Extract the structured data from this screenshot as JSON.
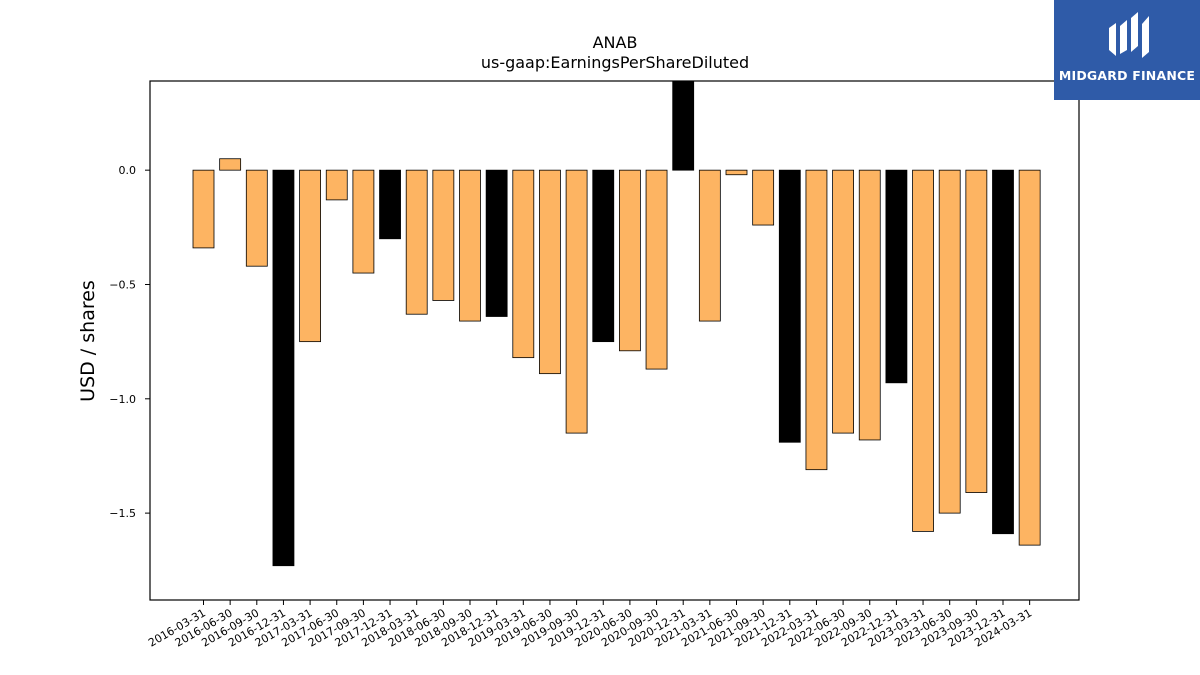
{
  "logo": {
    "text": "MIDGARD FINANCE",
    "icon": "midgard-finance-logo-icon",
    "background": "#2f5ba8"
  },
  "chart_data": {
    "type": "bar",
    "title": "ANAB",
    "subtitle": "us-gaap:EarningsPerShareDiluted",
    "xlabel": "",
    "ylabel": "USD / shares",
    "ylim": [
      -1.88,
      0.39
    ],
    "yticks": [
      0.0,
      -0.5,
      -1.0,
      -1.5
    ],
    "ytick_labels": [
      "0.0",
      "−0.5",
      "−1.0",
      "−1.5"
    ],
    "grid": false,
    "legend": "none",
    "colors": {
      "quarter": "#fdb462",
      "year_end": "#000000",
      "edge": "#000000"
    },
    "categories": [
      "2016-03-31",
      "2016-06-30",
      "2016-09-30",
      "2016-12-31",
      "2017-03-31",
      "2017-06-30",
      "2017-09-30",
      "2017-12-31",
      "2018-03-31",
      "2018-06-30",
      "2018-09-30",
      "2018-12-31",
      "2019-03-31",
      "2019-06-30",
      "2019-09-30",
      "2019-12-31",
      "2020-06-30",
      "2020-09-30",
      "2020-12-31",
      "2021-03-31",
      "2021-06-30",
      "2021-09-30",
      "2021-12-31",
      "2022-03-31",
      "2022-06-30",
      "2022-09-30",
      "2022-12-31",
      "2023-03-31",
      "2023-06-30",
      "2023-09-30",
      "2023-12-31",
      "2024-03-31"
    ],
    "values": [
      -0.34,
      0.05,
      -0.42,
      -1.73,
      -0.75,
      -0.13,
      -0.45,
      -0.3,
      -0.63,
      -0.57,
      -0.66,
      -0.64,
      -0.82,
      -0.89,
      -1.15,
      -0.75,
      -0.79,
      -0.87,
      0.39,
      -0.66,
      -0.02,
      -0.24,
      -1.19,
      -1.31,
      -1.15,
      -1.18,
      -0.93,
      -1.58,
      -1.5,
      -1.41,
      -1.59,
      -1.64
    ],
    "year_end": [
      false,
      false,
      false,
      true,
      false,
      false,
      false,
      true,
      false,
      false,
      false,
      true,
      false,
      false,
      false,
      true,
      false,
      false,
      true,
      false,
      false,
      false,
      true,
      false,
      false,
      false,
      true,
      false,
      false,
      false,
      true,
      false
    ]
  }
}
